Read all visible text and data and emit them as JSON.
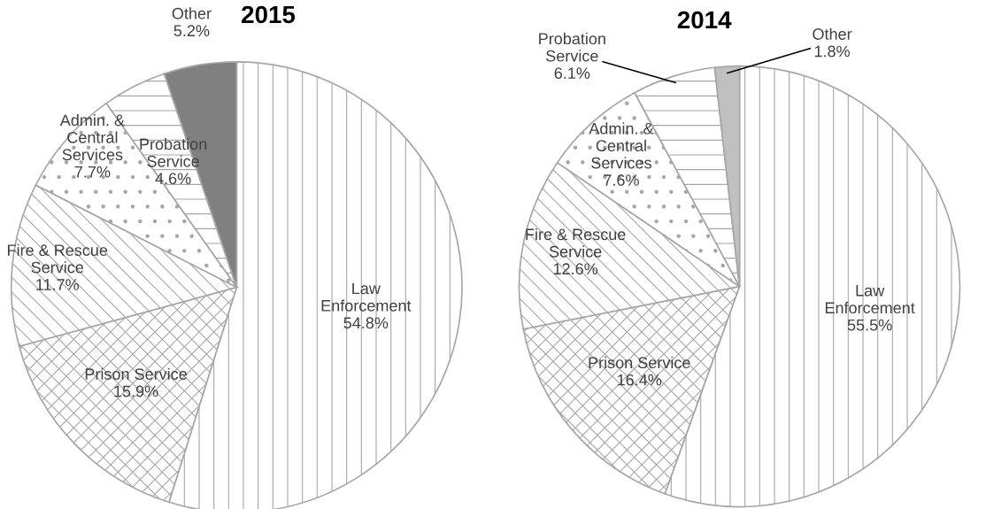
{
  "chart_data": [
    {
      "type": "pie",
      "title": "2015",
      "categories": [
        "Law\nEnforcement",
        "Prison Service",
        "Fire & Rescue\nService",
        "Admin. &\nCentral\nServices",
        "Probation\nService",
        "Other"
      ],
      "values": [
        54.8,
        15.9,
        11.7,
        7.7,
        4.6,
        5.2
      ],
      "value_labels": [
        "54.8%",
        "15.9%",
        "11.7%",
        "7.7%",
        "4.6%",
        "5.2%"
      ],
      "colors": [
        "#a6a6a6",
        "#a6a6a6",
        "#a6a6a6",
        "#a6a6a6",
        "#a6a6a6",
        "#808080"
      ]
    },
    {
      "type": "pie",
      "title": "2014",
      "categories": [
        "Law\nEnforcement",
        "Prison Service",
        "Fire & Rescue\nService",
        "Admin. &\nCentral\nServices",
        "Probation\nService",
        "Other"
      ],
      "values": [
        55.5,
        16.4,
        12.6,
        7.6,
        6.1,
        1.8
      ],
      "value_labels": [
        "55.5%",
        "16.4%",
        "12.6%",
        "7.6%",
        "6.1%",
        "1.8%"
      ],
      "colors": [
        "#a6a6a6",
        "#a6a6a6",
        "#a6a6a6",
        "#a6a6a6",
        "#a6a6a6",
        "#c0c0c0"
      ]
    }
  ]
}
